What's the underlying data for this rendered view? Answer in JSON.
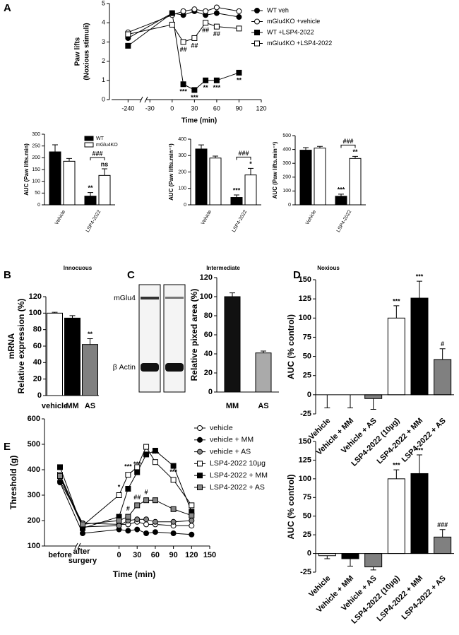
{
  "chart_data": [
    {
      "type": "line",
      "panel": "A",
      "ylabel": [
        "Paw lifts",
        "(Noxious stimuli)"
      ],
      "xlabel": "Time (min)",
      "x": [
        -240,
        0,
        15,
        30,
        45,
        60,
        90
      ],
      "xlim": [
        [
          -255,
          -228
        ],
        [
          -35,
          120
        ]
      ],
      "xticks": [
        -240,
        -30,
        0,
        30,
        60,
        90,
        120
      ],
      "ylim": [
        0,
        5
      ],
      "yticks": [
        0,
        1,
        2,
        3,
        4,
        5
      ],
      "series": [
        {
          "name": "WT veh",
          "marker": "circle",
          "color": "#000000",
          "values": [
            3.2,
            4.5,
            4.4,
            4.6,
            4.4,
            4.5,
            4.3
          ]
        },
        {
          "name": "mGlu4KO +vehicle",
          "marker": "circle",
          "color": "#ffffff",
          "values": [
            3.5,
            4.4,
            4.6,
            4.7,
            4.6,
            4.8,
            4.6
          ]
        },
        {
          "name": "WT +LSP4-2022",
          "marker": "square",
          "color": "#000000",
          "values": [
            2.8,
            4.5,
            0.8,
            0.5,
            1.0,
            1.0,
            1.4
          ],
          "significance": [
            null,
            null,
            "***",
            "***",
            "**",
            "***",
            "**"
          ]
        },
        {
          "name": "mGlu4KO +LSP4-2022",
          "marker": "square",
          "color": "#ffffff",
          "values": [
            3.4,
            3.9,
            3.0,
            3.2,
            4.0,
            3.8,
            3.7
          ],
          "significance": [
            null,
            null,
            "##",
            "##",
            "##",
            "##",
            null
          ]
        }
      ]
    },
    {
      "type": "bar",
      "ylabel": "AUC (Paw lifts.min)",
      "xlabel": "Innocuous",
      "categories": [
        "Vehicle",
        "LSP4-2022"
      ],
      "ylim": [
        0,
        300
      ],
      "yticks": [
        0,
        50,
        100,
        150,
        200,
        250,
        300
      ],
      "bracket_label": "###",
      "series": [
        {
          "name": "WT",
          "color": "#000000",
          "values": [
            225,
            37
          ],
          "errors": [
            30,
            15
          ],
          "significance": [
            null,
            "**"
          ]
        },
        {
          "name": "mGlu4KO",
          "color": "#ffffff",
          "values": [
            185,
            125
          ],
          "errors": [
            12,
            28
          ],
          "significance": [
            null,
            "ns"
          ]
        }
      ]
    },
    {
      "type": "bar",
      "ylabel": "AUC (Paw lifts.min⁻¹)",
      "xlabel": "Intermediate",
      "categories": [
        "Vehicle",
        "LSP4-2022"
      ],
      "ylim": [
        0,
        400
      ],
      "yticks": [
        0,
        100,
        200,
        300,
        400
      ],
      "bracket_label": "###",
      "series": [
        {
          "color": "#000000",
          "values": [
            340,
            45
          ],
          "errors": [
            25,
            15
          ],
          "significance": [
            null,
            "***"
          ]
        },
        {
          "color": "#ffffff",
          "values": [
            285,
            182
          ],
          "errors": [
            12,
            40
          ],
          "significance": [
            null,
            "*"
          ]
        }
      ]
    },
    {
      "type": "bar",
      "ylabel": "AUC (Paw lifts.min⁻¹)",
      "xlabel": "Noxious",
      "categories": [
        "Vehicle",
        "LSP4-2022"
      ],
      "ylim": [
        0,
        500
      ],
      "yticks": [
        0,
        100,
        200,
        300,
        400,
        500
      ],
      "bracket_label": "###",
      "series": [
        {
          "color": "#000000",
          "values": [
            395,
            62
          ],
          "errors": [
            18,
            15
          ],
          "significance": [
            null,
            "***"
          ]
        },
        {
          "color": "#ffffff",
          "values": [
            410,
            335
          ],
          "errors": [
            12,
            15
          ],
          "significance": [
            null,
            "**"
          ]
        }
      ]
    },
    {
      "type": "bar",
      "panel": "B",
      "ylabel": [
        "mRNA",
        "Relative expression (%)"
      ],
      "categories": [
        "vehicle",
        "MM",
        "AS"
      ],
      "values": [
        100,
        94,
        62
      ],
      "errors": [
        1,
        3,
        7
      ],
      "colors": [
        "#ffffff",
        "#000000",
        "#808080"
      ],
      "significance": [
        null,
        null,
        "**"
      ],
      "ylim": [
        0,
        120
      ],
      "yticks": [
        0,
        20,
        40,
        60,
        80,
        100,
        120
      ]
    },
    {
      "type": "bar",
      "panel": "C",
      "ylabel": "Relative pixed area (%)",
      "blot_labels": [
        "mGlu4",
        "β Actin"
      ],
      "categories": [
        "MM",
        "AS"
      ],
      "values": [
        100,
        41
      ],
      "errors": [
        4,
        2
      ],
      "colors": [
        "#111111",
        "#aaaaaa"
      ],
      "ylim": [
        0,
        120
      ],
      "yticks": [
        0,
        20,
        40,
        60,
        80,
        100,
        120
      ]
    },
    {
      "type": "bar",
      "panel": "D",
      "ylabel": "AUC (% control)",
      "categories": [
        "Vehicle",
        "Vehicle + MM",
        "Vehicle + AS",
        "LSP4-2022 (10µg)",
        "LSP4-2022 + MM",
        "LSP4-2022 + AS"
      ],
      "values": [
        0,
        0,
        -5,
        100,
        126,
        46
      ],
      "errors": [
        17,
        17,
        14,
        16,
        22,
        14
      ],
      "colors": [
        "#ffffff",
        "#000000",
        "#808080",
        "#ffffff",
        "#000000",
        "#808080"
      ],
      "significance": [
        null,
        null,
        null,
        "***",
        "***",
        "#"
      ],
      "ylim": [
        -25,
        150
      ],
      "yticks": [
        -25,
        0,
        25,
        50,
        75,
        100,
        125,
        150
      ]
    },
    {
      "type": "line",
      "panel": "E",
      "ylabel": "Threshold (g)",
      "xlabel": "Time (min)",
      "x": [
        "before",
        "after surgery",
        0,
        15,
        30,
        45,
        60,
        90,
        120
      ],
      "xlim": [
        [
          -66,
          150
        ]
      ],
      "xticks": [
        0,
        30,
        60,
        90,
        120,
        150
      ],
      "ylim": [
        100,
        600
      ],
      "yticks": [
        100,
        200,
        300,
        400,
        500,
        600
      ],
      "series": [
        {
          "name": "vehicle",
          "marker": "circle",
          "color": "#ffffff",
          "values": [
            355,
            190,
            185,
            185,
            195,
            185,
            185,
            180,
            180
          ]
        },
        {
          "name": "vehicle + MM",
          "marker": "circle",
          "color": "#000000",
          "values": [
            350,
            150,
            165,
            160,
            165,
            150,
            155,
            150,
            145
          ]
        },
        {
          "name": "vehicle + AS",
          "marker": "circle",
          "color": "#888888",
          "values": [
            370,
            175,
            180,
            200,
            205,
            205,
            195,
            195,
            200
          ]
        },
        {
          "name": "LSP4-2022 10µg",
          "marker": "square",
          "color": "#ffffff",
          "values": [
            380,
            180,
            300,
            380,
            410,
            490,
            430,
            360,
            260
          ],
          "significance": [
            null,
            null,
            "*",
            "***",
            null,
            null,
            "***",
            "***",
            null
          ]
        },
        {
          "name": "LSP4-2022 + MM",
          "marker": "square",
          "color": "#000000",
          "values": [
            410,
            170,
            215,
            325,
            390,
            460,
            475,
            415,
            235
          ],
          "significance": [
            null,
            null,
            null,
            null,
            "***",
            null,
            null,
            null,
            null
          ]
        },
        {
          "name": "LSP4-2022 + AS",
          "marker": "square",
          "color": "#888888",
          "values": [
            375,
            185,
            200,
            215,
            260,
            280,
            280,
            245,
            220
          ],
          "significance": [
            null,
            null,
            null,
            "#",
            "##",
            "#",
            null,
            null,
            null
          ]
        }
      ]
    },
    {
      "type": "bar",
      "ylabel": "AUC (% control)",
      "categories": [
        "Vehicle",
        "Vehicle + MM",
        "Vehicle + AS",
        "LSP4-2022 (10µg)",
        "LSP4-2022 + MM",
        "LSP4-2022 + AS"
      ],
      "values": [
        -3,
        -7,
        -18,
        100,
        107,
        22
      ],
      "errors": [
        4,
        10,
        4,
        12,
        25,
        10
      ],
      "colors": [
        "#ffffff",
        "#000000",
        "#808080",
        "#ffffff",
        "#000000",
        "#808080"
      ],
      "significance": [
        null,
        null,
        null,
        "***",
        "***",
        "###"
      ],
      "ylim": [
        -25,
        150
      ],
      "yticks": [
        -25,
        0,
        25,
        50,
        75,
        100,
        125,
        150
      ]
    }
  ]
}
